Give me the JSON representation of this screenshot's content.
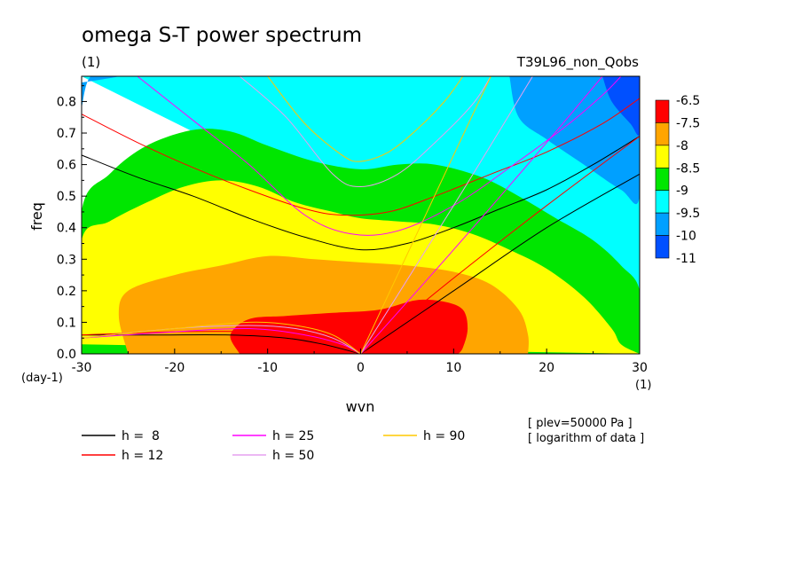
{
  "chart_data": {
    "type": "heatmap",
    "title": "omega S-T power spectrum",
    "subtitle_left": "(1)",
    "subtitle_right": "T39L96_non_Qobs",
    "xlabel": "wvn",
    "ylabel": "freq",
    "x_unit": "(1)",
    "y_unit": "(day-1)",
    "xlim": [
      -30,
      30
    ],
    "ylim": [
      0,
      0.88
    ],
    "x_ticks": [
      -30,
      -20,
      -10,
      0,
      10,
      20,
      30
    ],
    "y_ticks": [
      0.0,
      0.1,
      0.2,
      0.3,
      0.4,
      0.5,
      0.6,
      0.7,
      0.8
    ],
    "x_tick_labels": [
      "-30",
      "-20",
      "-10",
      "0",
      "10",
      "20",
      "30"
    ],
    "y_tick_labels": [
      "0.0",
      "0.1",
      "0.2",
      "0.3",
      "0.4",
      "0.5",
      "0.6",
      "0.7",
      "0.8"
    ],
    "colorbar": {
      "labels": [
        "-6.5",
        "-7.5",
        "-8",
        "-8.5",
        "-9",
        "-9.5",
        "-10",
        "-11"
      ],
      "colors": [
        "#ff0000",
        "#ffa500",
        "#ffff00",
        "#00e600",
        "#00ffff",
        "#00a0ff",
        "#0050ff"
      ]
    },
    "contour_regions": [
      {
        "level": "-9.5 to -9",
        "color": "#00ffff",
        "boundary": [
          [
            -30,
            0.88
          ],
          [
            30,
            0.88
          ],
          [
            30,
            0
          ]
        ]
      },
      {
        "level": "-9 to -8.5",
        "color": "#00e600",
        "boundary": [
          [
            -30,
            0
          ],
          [
            -30,
            0.45
          ],
          [
            -27,
            0.57
          ],
          [
            -23,
            0.66
          ],
          [
            -18,
            0.71
          ],
          [
            -14,
            0.705
          ],
          [
            -10,
            0.66
          ],
          [
            -5,
            0.61
          ],
          [
            0,
            0.585
          ],
          [
            4,
            0.6
          ],
          [
            8,
            0.6
          ],
          [
            13,
            0.56
          ],
          [
            17,
            0.5
          ],
          [
            21,
            0.43
          ],
          [
            25,
            0.36
          ],
          [
            28,
            0.28
          ],
          [
            30,
            0.2
          ],
          [
            30,
            0
          ]
        ]
      },
      {
        "level": "-8.5 to -8",
        "color": "#ffff00",
        "boundary": [
          [
            -30,
            0.03
          ],
          [
            -30,
            0.36
          ],
          [
            -27,
            0.42
          ],
          [
            -23,
            0.48
          ],
          [
            -19,
            0.53
          ],
          [
            -15,
            0.55
          ],
          [
            -11,
            0.53
          ],
          [
            -7,
            0.48
          ],
          [
            -3,
            0.45
          ],
          [
            0,
            0.43
          ],
          [
            4,
            0.42
          ],
          [
            8,
            0.41
          ],
          [
            12,
            0.38
          ],
          [
            16,
            0.33
          ],
          [
            20,
            0.27
          ],
          [
            24,
            0.18
          ],
          [
            27,
            0.08
          ],
          [
            28,
            0.03
          ],
          [
            30,
            0
          ]
        ]
      },
      {
        "level": "-8 to -7.5",
        "color": "#ffa500",
        "boundary": [
          [
            -25,
            0
          ],
          [
            -26,
            0.12
          ],
          [
            -25,
            0.2
          ],
          [
            -20,
            0.25
          ],
          [
            -15,
            0.28
          ],
          [
            -10,
            0.31
          ],
          [
            -5,
            0.3
          ],
          [
            0,
            0.29
          ],
          [
            5,
            0.28
          ],
          [
            10,
            0.26
          ],
          [
            14,
            0.22
          ],
          [
            17,
            0.14
          ],
          [
            18,
            0.06
          ],
          [
            18,
            0
          ]
        ]
      },
      {
        "level": "-7.5 to -6.5",
        "color": "#ff0000",
        "boundary": [
          [
            -13,
            0
          ],
          [
            -14,
            0.06
          ],
          [
            -12,
            0.11
          ],
          [
            -8,
            0.12
          ],
          [
            -3,
            0.13
          ],
          [
            2,
            0.14
          ],
          [
            6,
            0.17
          ],
          [
            9,
            0.165
          ],
          [
            11,
            0.14
          ],
          [
            11.5,
            0.08
          ],
          [
            11,
            0.02
          ],
          [
            10.5,
            0
          ]
        ]
      },
      {
        "level": "-10 to -9.5",
        "color": "#00a0ff",
        "boundary": [
          [
            -30,
            0.78
          ],
          [
            -29,
            0.88
          ],
          [
            -26,
            0.88
          ],
          [
            -30,
            0.86
          ]
        ]
      },
      {
        "level": "-10 to -9.5",
        "color": "#00a0ff",
        "boundary": [
          [
            16,
            0.88
          ],
          [
            17,
            0.75
          ],
          [
            20,
            0.68
          ],
          [
            24,
            0.6
          ],
          [
            28,
            0.52
          ],
          [
            30,
            0.5
          ],
          [
            30,
            0.88
          ]
        ]
      },
      {
        "level": "-11 to -10",
        "color": "#0050ff",
        "boundary": [
          [
            26,
            0.88
          ],
          [
            27,
            0.8
          ],
          [
            29,
            0.73
          ],
          [
            30,
            0.7
          ],
          [
            30,
            0.88
          ]
        ]
      }
    ],
    "dispersion_curves": [
      {
        "name": "h =  8",
        "color": "#000000",
        "lines": [
          [
            [
              -30,
              0.63
            ],
            [
              -24,
              0.56
            ],
            [
              -18,
              0.5
            ],
            [
              -12,
              0.43
            ],
            [
              -6,
              0.37
            ],
            [
              0,
              0.33
            ],
            [
              5,
              0.35
            ],
            [
              10,
              0.4
            ],
            [
              15,
              0.46
            ],
            [
              20,
              0.52
            ],
            [
              25,
              0.6
            ],
            [
              30,
              0.69
            ]
          ],
          [
            [
              0,
              0
            ],
            [
              10,
              0.2
            ],
            [
              20,
              0.4
            ],
            [
              30,
              0.57
            ]
          ],
          [
            [
              -30,
              0.06
            ],
            [
              -22,
              0.06
            ],
            [
              -14,
              0.06
            ],
            [
              -8,
              0.05
            ],
            [
              -4,
              0.03
            ],
            [
              0,
              0
            ]
          ]
        ]
      },
      {
        "name": "h = 12",
        "color": "#ff0000",
        "lines": [
          [
            [
              -30,
              0.76
            ],
            [
              -24,
              0.67
            ],
            [
              -18,
              0.59
            ],
            [
              -12,
              0.52
            ],
            [
              -6,
              0.46
            ],
            [
              -2,
              0.44
            ],
            [
              3,
              0.45
            ],
            [
              8,
              0.5
            ],
            [
              14,
              0.57
            ],
            [
              20,
              0.64
            ],
            [
              26,
              0.73
            ],
            [
              30,
              0.81
            ]
          ],
          [
            [
              0,
              0
            ],
            [
              10,
              0.24
            ],
            [
              20,
              0.47
            ],
            [
              30,
              0.69
            ]
          ],
          [
            [
              -30,
              0.06
            ],
            [
              -20,
              0.07
            ],
            [
              -12,
              0.07
            ],
            [
              -7,
              0.06
            ],
            [
              -3,
              0.03
            ],
            [
              0,
              0
            ]
          ]
        ]
      },
      {
        "name": "h = 25",
        "color": "#ff00ff",
        "lines": [
          [
            [
              -24,
              0.88
            ],
            [
              -18,
              0.74
            ],
            [
              -12,
              0.6
            ],
            [
              -6,
              0.44
            ],
            [
              -1,
              0.38
            ],
            [
              4,
              0.39
            ],
            [
              10,
              0.47
            ],
            [
              16,
              0.59
            ],
            [
              22,
              0.72
            ],
            [
              26,
              0.82
            ],
            [
              28,
              0.88
            ]
          ],
          [
            [
              0,
              0
            ],
            [
              10,
              0.33
            ],
            [
              20,
              0.67
            ],
            [
              26,
              0.88
            ]
          ],
          [
            [
              -30,
              0.05
            ],
            [
              -20,
              0.07
            ],
            [
              -12,
              0.08
            ],
            [
              -6,
              0.06
            ],
            [
              -2,
              0.03
            ],
            [
              0,
              0
            ]
          ]
        ]
      },
      {
        "name": "h = 50",
        "color": "#e6a0f0",
        "lines": [
          [
            [
              -13,
              0.88
            ],
            [
              -8,
              0.75
            ],
            [
              -3,
              0.57
            ],
            [
              0,
              0.53
            ],
            [
              4,
              0.57
            ],
            [
              8,
              0.67
            ],
            [
              12,
              0.79
            ],
            [
              14,
              0.88
            ]
          ],
          [
            [
              0,
              0
            ],
            [
              10,
              0.47
            ],
            [
              18.5,
              0.88
            ]
          ],
          [
            [
              -30,
              0.05
            ],
            [
              -20,
              0.08
            ],
            [
              -12,
              0.09
            ],
            [
              -7,
              0.08
            ],
            [
              -3,
              0.05
            ],
            [
              0,
              0
            ]
          ]
        ]
      },
      {
        "name": "h = 90",
        "color": "#ffc800",
        "lines": [
          [
            [
              -10,
              0.88
            ],
            [
              -6,
              0.73
            ],
            [
              -2,
              0.63
            ],
            [
              0,
              0.61
            ],
            [
              3,
              0.64
            ],
            [
              6,
              0.71
            ],
            [
              9,
              0.8
            ],
            [
              11,
              0.88
            ]
          ],
          [
            [
              0,
              0
            ],
            [
              10,
              0.63
            ],
            [
              14,
              0.88
            ]
          ],
          [
            [
              -30,
              0.05
            ],
            [
              -20,
              0.08
            ],
            [
              -12,
              0.1
            ],
            [
              -7,
              0.09
            ],
            [
              -3,
              0.06
            ],
            [
              0,
              0
            ]
          ]
        ]
      }
    ],
    "annotations": [
      "[ plev=50000 Pa ]",
      "[ logarithm of data ]"
    ]
  }
}
